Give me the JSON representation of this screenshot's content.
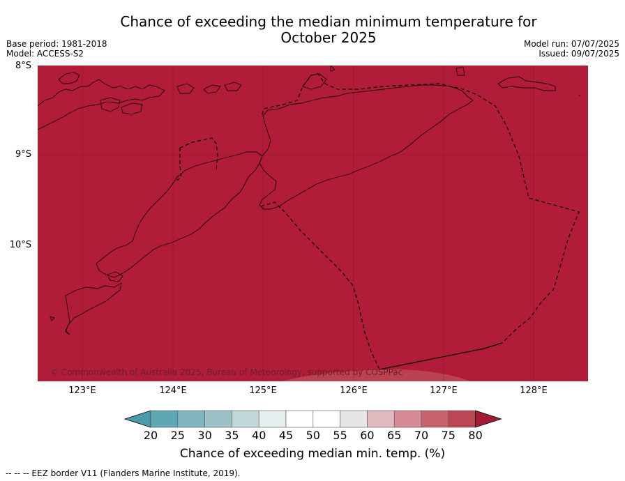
{
  "title_line1": "Chance of exceeding the median minimum temperature for",
  "title_line2": "October 2025",
  "meta_left": {
    "base_period": "Base period: 1981-2018",
    "model": "Model: ACCESS-S2"
  },
  "meta_right": {
    "model_run": "Model run: 07/07/2025",
    "issued": "Issued: 09/07/2025"
  },
  "map": {
    "fill_color": "#b11c38",
    "lat_labels": [
      "8°S",
      "9°S",
      "10°S"
    ],
    "lon_labels": [
      "123°E",
      "124°E",
      "125°E",
      "126°E",
      "127°E",
      "128°E"
    ],
    "copyright": "© Commonwealth of Australia 2025, Bureau of Meteorology, supported by COSPPac"
  },
  "colorbar": {
    "ticks": [
      "20",
      "25",
      "30",
      "35",
      "40",
      "45",
      "50",
      "55",
      "60",
      "65",
      "70",
      "75",
      "80"
    ],
    "colors": [
      "#5fa7b5",
      "#7fb4c0",
      "#9cc2c8",
      "#c1d6d8",
      "#e6eff0",
      "#ffffff",
      "#ffffff",
      "#e6e6e6",
      "#e3b9c0",
      "#d58a96",
      "#c7646f",
      "#bc4754"
    ],
    "under_color": "#4a9aab",
    "over_color": "#a11a36",
    "label": "Chance of exceeding median min. temp. (%)"
  },
  "footnote": "--  --  -- EEZ border V11 (Flanders Marine Institute, 2019)."
}
